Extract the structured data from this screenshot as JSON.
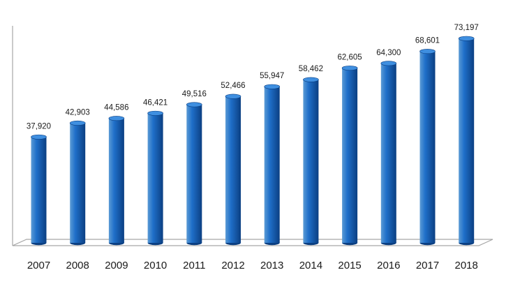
{
  "chart_data": {
    "type": "bar",
    "title": "",
    "xlabel": "",
    "ylabel": "",
    "categories": [
      "2007",
      "2008",
      "2009",
      "2010",
      "2011",
      "2012",
      "2013",
      "2014",
      "2015",
      "2016",
      "2017",
      "2018"
    ],
    "values": [
      37920,
      42903,
      44586,
      46421,
      49516,
      52466,
      55947,
      58462,
      62605,
      64300,
      68601,
      73197
    ],
    "data_labels": [
      "37,920",
      "42,903",
      "44,586",
      "46,421",
      "49,516",
      "52,466",
      "55,947",
      "58,462",
      "62,605",
      "64,300",
      "68,601",
      "73,197"
    ],
    "ylim": [
      0,
      80000
    ],
    "grid": false,
    "legend": "none",
    "bar_style": "3d-cylinder",
    "colors": {
      "bar_light": "#5b9bd5",
      "bar_mid": "#1f6fc9",
      "bar_dark": "#0b3f82",
      "bar_top": "#3f8fe0",
      "axis": "#a6a6a6"
    }
  }
}
